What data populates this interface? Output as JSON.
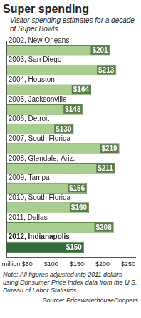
{
  "chart_data": {
    "type": "bar",
    "orientation": "horizontal",
    "title": "Super spending",
    "subtitle": "Visitor spending estimates for a decade of Super Bowls",
    "categories": [
      "2002, New Orleans",
      "2003, San Diego",
      "2004, Houston",
      "2005, Jacksonville",
      "2006, Detroit",
      "2007, South Florida",
      "2008, Glendale, Ariz.",
      "2009, Tampa",
      "2010, South Florida",
      "2011, Dallas",
      "2012, Indianapolis"
    ],
    "values": [
      201,
      213,
      164,
      148,
      130,
      219,
      211,
      156,
      160,
      208,
      150
    ],
    "value_labels": [
      "$201",
      "$213",
      "$164",
      "$148",
      "$130",
      "$219",
      "$211",
      "$156",
      "$160",
      "$208",
      "$150"
    ],
    "data_labels": true,
    "colors": [
      "#a9cf8f",
      "#a9cf8f",
      "#a9cf8f",
      "#a9cf8f",
      "#a9cf8f",
      "#a9cf8f",
      "#a9cf8f",
      "#a9cf8f",
      "#a9cf8f",
      "#a9cf8f",
      "#2f6b3d"
    ],
    "xlim": [
      0,
      250
    ],
    "xticks": [
      {
        "value": 50,
        "label": "million $50"
      },
      {
        "value": 100,
        "label": "$100"
      },
      {
        "value": 150,
        "label": "$150"
      },
      {
        "value": 200,
        "label": "$200"
      },
      {
        "value": 250,
        "label": "$250"
      }
    ],
    "grid": false,
    "tick_labels": "x",
    "note": "Note: All figures adjusted into 2011 dollars using Consumer Price Index data from the U.S. Bureau of Labor Statistics.",
    "source": "Source: PricewaterhouseCoopers"
  }
}
